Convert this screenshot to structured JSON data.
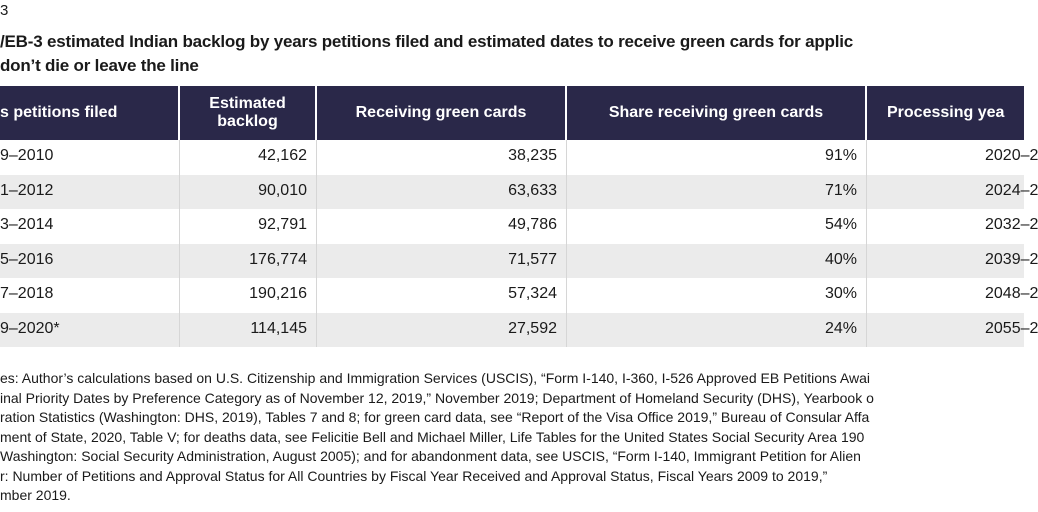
{
  "figure_label": "3",
  "title_lines": [
    "/EB-3 estimated Indian backlog by years petitions filed and estimated dates to receive green cards for applic",
    "don’t die or leave the line"
  ],
  "table": {
    "headers": [
      "s petitions filed",
      "Estimated backlog",
      "Receiving green cards",
      "Share receiving green cards",
      "Processing yea"
    ],
    "rows": [
      [
        "9–2010",
        "42,162",
        "38,235",
        "91%",
        "2020–2"
      ],
      [
        "1–2012",
        "90,010",
        "63,633",
        "71%",
        "2024–2"
      ],
      [
        "3–2014",
        "92,791",
        "49,786",
        "54%",
        "2032–2"
      ],
      [
        "5–2016",
        "176,774",
        "71,577",
        "40%",
        "2039–2"
      ],
      [
        "7–2018",
        "190,216",
        "57,324",
        "30%",
        "2048–2"
      ],
      [
        "9–2020*",
        "114,145",
        "27,592",
        "24%",
        "2055–2"
      ]
    ]
  },
  "notes": [
    "es: Author’s calculations based on U.S. Citizenship and Immigration Services (USCIS), “Form I-140, I-360, I-526 Approved EB Petitions Awai",
    "inal Priority Dates by Preference Category as of November 12, 2019,” November 2019; Department of Homeland Security (DHS), Yearbook o",
    "ration Statistics (Washington: DHS, 2019), Tables 7 and 8; for green card data, see “Report of the Visa Office 2019,” Bureau of Consular Affa",
    "ment of State, 2020, Table V; for deaths data, see Felicitie Bell and Michael Miller, Life Tables for the United States Social Security Area 190",
    "Washington: Social Security Administration, August 2005); and for abandonment data, see USCIS, “Form I-140, Immigrant Petition for Alien",
    "r: Number of Petitions and Approval Status for All Countries by Fiscal Year Received and Approval Status, Fiscal Years 2009 to 2019,”",
    "mber 2019."
  ]
}
